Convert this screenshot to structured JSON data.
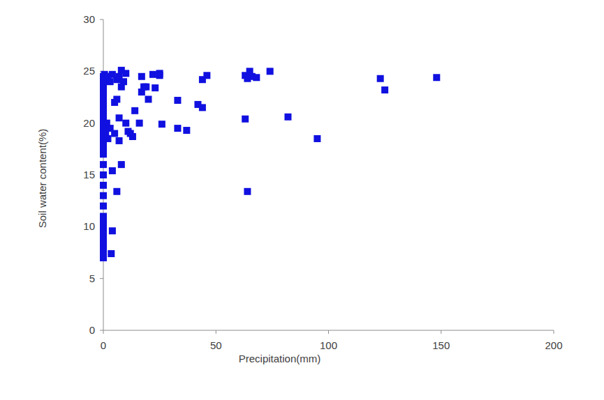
{
  "chart_data": {
    "type": "scatter",
    "x_label": "Precipitation(mm)",
    "y_label": "Soil water content(%)",
    "xlim": [
      0,
      200
    ],
    "ylim": [
      0,
      30
    ],
    "xticks": [
      0,
      50,
      100,
      150,
      200
    ],
    "yticks": [
      0,
      5,
      10,
      15,
      20,
      25,
      30
    ],
    "grid": false,
    "color": "#1010e0",
    "marker": "square",
    "x": [
      0,
      0,
      0,
      0,
      0,
      0,
      0,
      0,
      0,
      0,
      0,
      0,
      0,
      0,
      0,
      0,
      0,
      0,
      0,
      0,
      0,
      0,
      0,
      0,
      0,
      0,
      0,
      0,
      0,
      0,
      0.5,
      1,
      1,
      1.5,
      2,
      2,
      3,
      3,
      3.5,
      4,
      4,
      4,
      5,
      5,
      6,
      6,
      6,
      7,
      7,
      7,
      8,
      8,
      8,
      9,
      10,
      10,
      11,
      12,
      13,
      14,
      16,
      17,
      17,
      18,
      19,
      20,
      22,
      23,
      25,
      25,
      26,
      33,
      33,
      37,
      42,
      44,
      44,
      46,
      63,
      63,
      64,
      64,
      65,
      66,
      68,
      74,
      82,
      95,
      123,
      125,
      148
    ],
    "values": [
      7,
      7.5,
      8,
      8.5,
      9,
      9.5,
      10,
      10.5,
      11,
      12,
      13,
      14,
      15,
      16,
      17,
      17.5,
      18,
      18.5,
      19,
      19.5,
      20,
      20.5,
      21,
      21.5,
      22,
      22.5,
      23,
      23.5,
      24,
      24.5,
      24.7,
      24.5,
      19,
      20,
      24.5,
      18.5,
      24,
      19.5,
      7.4,
      9.6,
      15.4,
      24.7,
      22,
      19,
      13.4,
      24.2,
      22.3,
      24.5,
      20.5,
      18.3,
      25.1,
      16,
      23.5,
      24,
      24.8,
      20,
      19.2,
      19,
      18.7,
      21.2,
      20,
      24.5,
      23,
      23.5,
      23.5,
      22.3,
      24.7,
      23.4,
      24.6,
      24.8,
      19.9,
      22.2,
      19.5,
      19.3,
      21.8,
      21.5,
      24.2,
      24.6,
      24.6,
      20.4,
      13.4,
      24.3,
      25,
      24.5,
      24.4,
      25,
      20.6,
      18.5,
      24.3,
      23.2,
      24.4
    ]
  }
}
